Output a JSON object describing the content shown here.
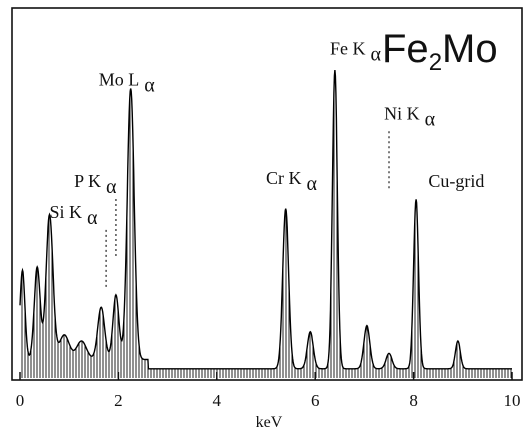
{
  "chart_data": {
    "type": "area",
    "title": "Fe2Mo",
    "title_main": "Fe",
    "title_sub": "2",
    "title_tail": "Mo",
    "xlabel": "keV",
    "ylabel": "",
    "xlim": [
      0,
      10
    ],
    "ylim": [
      0,
      100
    ],
    "x_ticks": [
      0,
      2,
      4,
      6,
      8,
      10
    ],
    "x_tick_labels": [
      "0",
      "2",
      "4",
      "6",
      "8",
      "10"
    ],
    "grid": false,
    "legend": "none",
    "fill_style": "vertical hatching",
    "peaks": [
      {
        "x": 0.05,
        "height": 29,
        "width": 0.05
      },
      {
        "x": 0.35,
        "height": 30,
        "width": 0.06
      },
      {
        "x": 0.6,
        "height": 47,
        "width": 0.07
      },
      {
        "x": 0.9,
        "height": 8,
        "width": 0.1
      },
      {
        "x": 1.25,
        "height": 6,
        "width": 0.1
      },
      {
        "x": 1.65,
        "height": 17,
        "width": 0.07
      },
      {
        "x": 1.95,
        "height": 21,
        "width": 0.06
      },
      {
        "x": 2.25,
        "height": 88,
        "width": 0.07
      },
      {
        "x": 5.4,
        "height": 52,
        "width": 0.06
      },
      {
        "x": 5.9,
        "height": 12,
        "width": 0.06
      },
      {
        "x": 6.4,
        "height": 97,
        "width": 0.05
      },
      {
        "x": 7.05,
        "height": 14,
        "width": 0.06
      },
      {
        "x": 7.5,
        "height": 5,
        "width": 0.06
      },
      {
        "x": 8.05,
        "height": 55,
        "width": 0.05
      },
      {
        "x": 8.9,
        "height": 9,
        "width": 0.05
      }
    ],
    "background_level": 3,
    "annotations": [
      {
        "text": "Si K",
        "sub": "α",
        "x": 0.6,
        "y": 52,
        "leader_to": 1.75
      },
      {
        "text": "P K",
        "sub": "α",
        "x": 1.1,
        "y": 62,
        "leader_to": 1.95
      },
      {
        "text": "Mo L",
        "sub": "α",
        "x": 1.6,
        "y": 95
      },
      {
        "text": "Cr K",
        "sub": "α",
        "x": 5.0,
        "y": 63
      },
      {
        "text": "Fe K",
        "sub": "α",
        "x": 6.3,
        "y": 105
      },
      {
        "text": "Ni K",
        "sub": "α",
        "x": 7.4,
        "y": 84,
        "leader_to": 7.5
      },
      {
        "text": "Cu-grid",
        "x": 8.3,
        "y": 62
      }
    ]
  }
}
